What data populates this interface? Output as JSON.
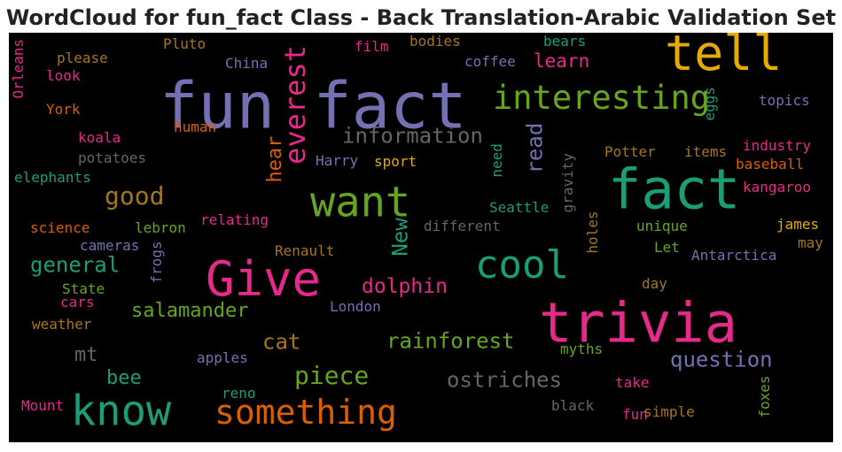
{
  "chart_data": {
    "type": "wordcloud",
    "title": "WordCloud for fun_fact Class - Back Translation-Arabic Validation Set",
    "background": "#000000",
    "words": [
      {
        "text": "fun fact",
        "color": "#7570b3"
      },
      {
        "text": "fact",
        "color": "#1b9e77"
      },
      {
        "text": "trivia",
        "color": "#e7298a"
      },
      {
        "text": "tell",
        "color": "#e6ab02"
      },
      {
        "text": "Give",
        "color": "#e7298a"
      },
      {
        "text": "know",
        "color": "#1b9e77"
      },
      {
        "text": "want",
        "color": "#66a61e"
      },
      {
        "text": "something",
        "color": "#d95f02"
      },
      {
        "text": "cool",
        "color": "#1b9e77"
      },
      {
        "text": "interesting",
        "color": "#66a61e"
      },
      {
        "text": "information",
        "color": "#666666"
      },
      {
        "text": "everest",
        "color": "#e7298a"
      },
      {
        "text": "hear",
        "color": "#d95f02"
      },
      {
        "text": "good",
        "color": "#a6761d"
      },
      {
        "text": "general",
        "color": "#1b9e77"
      },
      {
        "text": "salamander",
        "color": "#66a61e"
      },
      {
        "text": "rainforest",
        "color": "#66a61e"
      },
      {
        "text": "piece",
        "color": "#66a61e"
      },
      {
        "text": "ostriches",
        "color": "#666666"
      },
      {
        "text": "question",
        "color": "#7570b3"
      },
      {
        "text": "dolphin",
        "color": "#e7298a"
      },
      {
        "text": "New",
        "color": "#1b9e77"
      },
      {
        "text": "read",
        "color": "#7570b3"
      },
      {
        "text": "learn",
        "color": "#e7298a"
      },
      {
        "text": "cat",
        "color": "#a6761d"
      },
      {
        "text": "mt",
        "color": "#666666"
      },
      {
        "text": "bee",
        "color": "#1b9e77"
      },
      {
        "text": "Pluto",
        "color": "#a6761d"
      },
      {
        "text": "film",
        "color": "#e7298a"
      },
      {
        "text": "bodies",
        "color": "#a6761d"
      },
      {
        "text": "bears",
        "color": "#1b9e77"
      },
      {
        "text": "coffee",
        "color": "#7570b3"
      },
      {
        "text": "China",
        "color": "#7570b3"
      },
      {
        "text": "please",
        "color": "#a6761d"
      },
      {
        "text": "look",
        "color": "#e7298a"
      },
      {
        "text": "Orleans",
        "color": "#e7298a"
      },
      {
        "text": "York",
        "color": "#d95f02"
      },
      {
        "text": "topics",
        "color": "#7570b3"
      },
      {
        "text": "eggs",
        "color": "#1b9e77"
      },
      {
        "text": "human",
        "color": "#d95f02"
      },
      {
        "text": "koala",
        "color": "#e7298a"
      },
      {
        "text": "potatoes",
        "color": "#666666"
      },
      {
        "text": "elephants",
        "color": "#1b9e77"
      },
      {
        "text": "Harry",
        "color": "#7570b3"
      },
      {
        "text": "sport",
        "color": "#e6ab02"
      },
      {
        "text": "need",
        "color": "#1b9e77"
      },
      {
        "text": "gravity",
        "color": "#666666"
      },
      {
        "text": "Potter",
        "color": "#a6761d"
      },
      {
        "text": "items",
        "color": "#a6761d"
      },
      {
        "text": "industry",
        "color": "#e7298a"
      },
      {
        "text": "baseball",
        "color": "#d95f02"
      },
      {
        "text": "kangaroo",
        "color": "#e7298a"
      },
      {
        "text": "science",
        "color": "#d95f02"
      },
      {
        "text": "lebron",
        "color": "#66a61e"
      },
      {
        "text": "relating",
        "color": "#e7298a"
      },
      {
        "text": "different",
        "color": "#666666"
      },
      {
        "text": "Seattle",
        "color": "#1b9e77"
      },
      {
        "text": "holes",
        "color": "#a6761d"
      },
      {
        "text": "unique",
        "color": "#66a61e"
      },
      {
        "text": "james",
        "color": "#e6ab02"
      },
      {
        "text": "may",
        "color": "#a6761d"
      },
      {
        "text": "cameras",
        "color": "#7570b3"
      },
      {
        "text": "frogs",
        "color": "#7570b3"
      },
      {
        "text": "Renault",
        "color": "#a6761d"
      },
      {
        "text": "Let",
        "color": "#66a61e"
      },
      {
        "text": "Antarctica",
        "color": "#7570b3"
      },
      {
        "text": "State",
        "color": "#66a61e"
      },
      {
        "text": "cars",
        "color": "#e7298a"
      },
      {
        "text": "London",
        "color": "#7570b3"
      },
      {
        "text": "day",
        "color": "#a6761d"
      },
      {
        "text": "weather",
        "color": "#a6761d"
      },
      {
        "text": "apples",
        "color": "#7570b3"
      },
      {
        "text": "myths",
        "color": "#66a61e"
      },
      {
        "text": "reno",
        "color": "#1b9e77"
      },
      {
        "text": "take",
        "color": "#e7298a"
      },
      {
        "text": "Mount",
        "color": "#e7298a"
      },
      {
        "text": "black",
        "color": "#666666"
      },
      {
        "text": "fun",
        "color": "#e7298a"
      },
      {
        "text": "simple",
        "color": "#a6761d"
      },
      {
        "text": "foxes",
        "color": "#66a61e"
      }
    ]
  }
}
